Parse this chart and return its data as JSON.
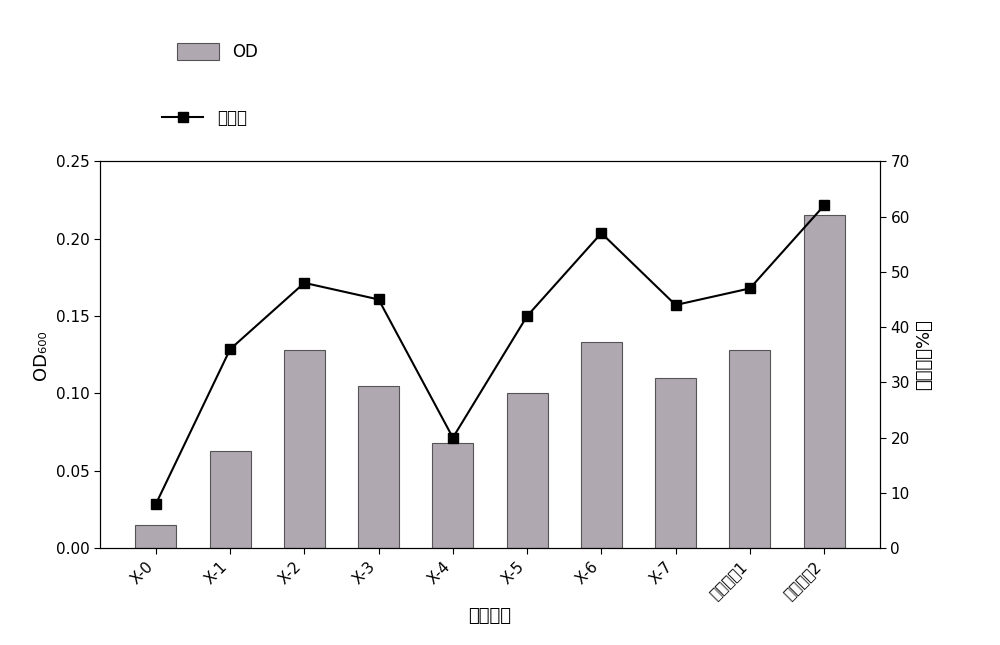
{
  "categories": [
    "X-0",
    "X-1",
    "X-2",
    "X-3",
    "X-4",
    "X-5",
    "X-6",
    "X-7",
    "混合菌杨1",
    "混合菌杨2"
  ],
  "od_values": [
    0.015,
    0.063,
    0.128,
    0.105,
    0.068,
    0.1,
    0.133,
    0.11,
    0.128,
    0.215
  ],
  "rate_values": [
    8,
    36,
    48,
    45,
    20,
    42,
    57,
    44,
    47,
    62
  ],
  "bar_color": "#b0a8b0",
  "bar_edgecolor": "#555555",
  "line_color": "#000000",
  "marker": "s",
  "marker_size": 7,
  "xlabel": "菌株编号",
  "ylabel_left": "OD₆₀₀",
  "ylabel_right": "降解率（%）",
  "ylim_left": [
    0,
    0.25
  ],
  "ylim_right": [
    0,
    70
  ],
  "yticks_left": [
    0.0,
    0.05,
    0.1,
    0.15,
    0.2,
    0.25
  ],
  "yticks_right": [
    0,
    10,
    20,
    30,
    40,
    50,
    60,
    70
  ],
  "legend_od_label": "OD",
  "legend_rate_label": "降解率",
  "background_color": "#ffffff",
  "font_size": 12,
  "label_font_size": 13,
  "tick_font_size": 11
}
